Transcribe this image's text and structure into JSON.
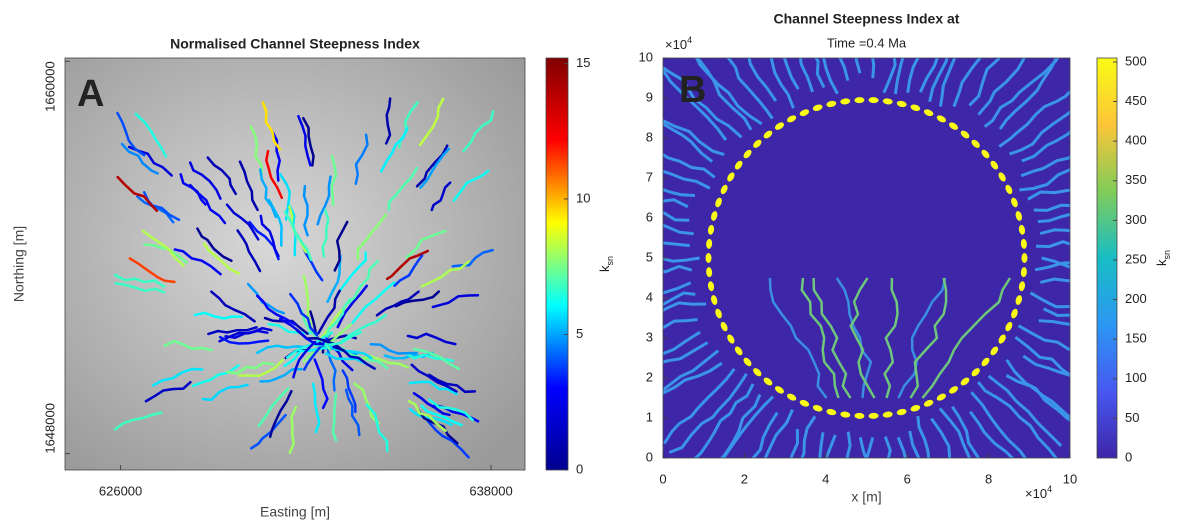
{
  "chart_data": [
    {
      "type": "map",
      "panel_label": "A",
      "title": "Normalised Channel Steepness Index",
      "xlabel": "Easting [m]",
      "ylabel": "Northing [m]",
      "xlim": [
        624200,
        639100
      ],
      "xticks": [
        626000,
        638000
      ],
      "ylim": [
        1647500,
        1660100
      ],
      "yticks": [
        1648000,
        1660000
      ],
      "colorbar": {
        "label": {
          "main": "k",
          "sub": "sn"
        },
        "lim": [
          0,
          15.2
        ],
        "ticks": [
          0,
          5,
          10,
          15
        ],
        "colormap": [
          "#00008f",
          "#0000ff",
          "#00ffff",
          "#ffff00",
          "#ff0000",
          "#800000"
        ]
      }
    },
    {
      "type": "raster",
      "panel_label": "B",
      "title": "Channel Steepness Index at",
      "subtitle": "Time =0.4 Ma",
      "xlabel": "x [m]",
      "xlim": [
        0,
        10
      ],
      "xticks": [
        0,
        2,
        4,
        6,
        8,
        10
      ],
      "ylim": [
        0,
        10
      ],
      "yticks": [
        0,
        1,
        2,
        3,
        4,
        5,
        6,
        7,
        8,
        9,
        10
      ],
      "xtick_multiplier": {
        "base": "×10",
        "exp": "4"
      },
      "ytick_multiplier": {
        "base": "×10",
        "exp": "4"
      },
      "colorbar": {
        "label": {
          "main": "k",
          "sub": "sn"
        },
        "lim": [
          0,
          505
        ],
        "ticks": [
          0,
          50,
          100,
          150,
          200,
          250,
          300,
          350,
          400,
          450,
          500
        ],
        "colormap": [
          "#3e26a8",
          "#4758f1",
          "#2c97f3",
          "#18bdc5",
          "#81cc59",
          "#fcc538",
          "#f9fb15"
        ]
      }
    }
  ]
}
